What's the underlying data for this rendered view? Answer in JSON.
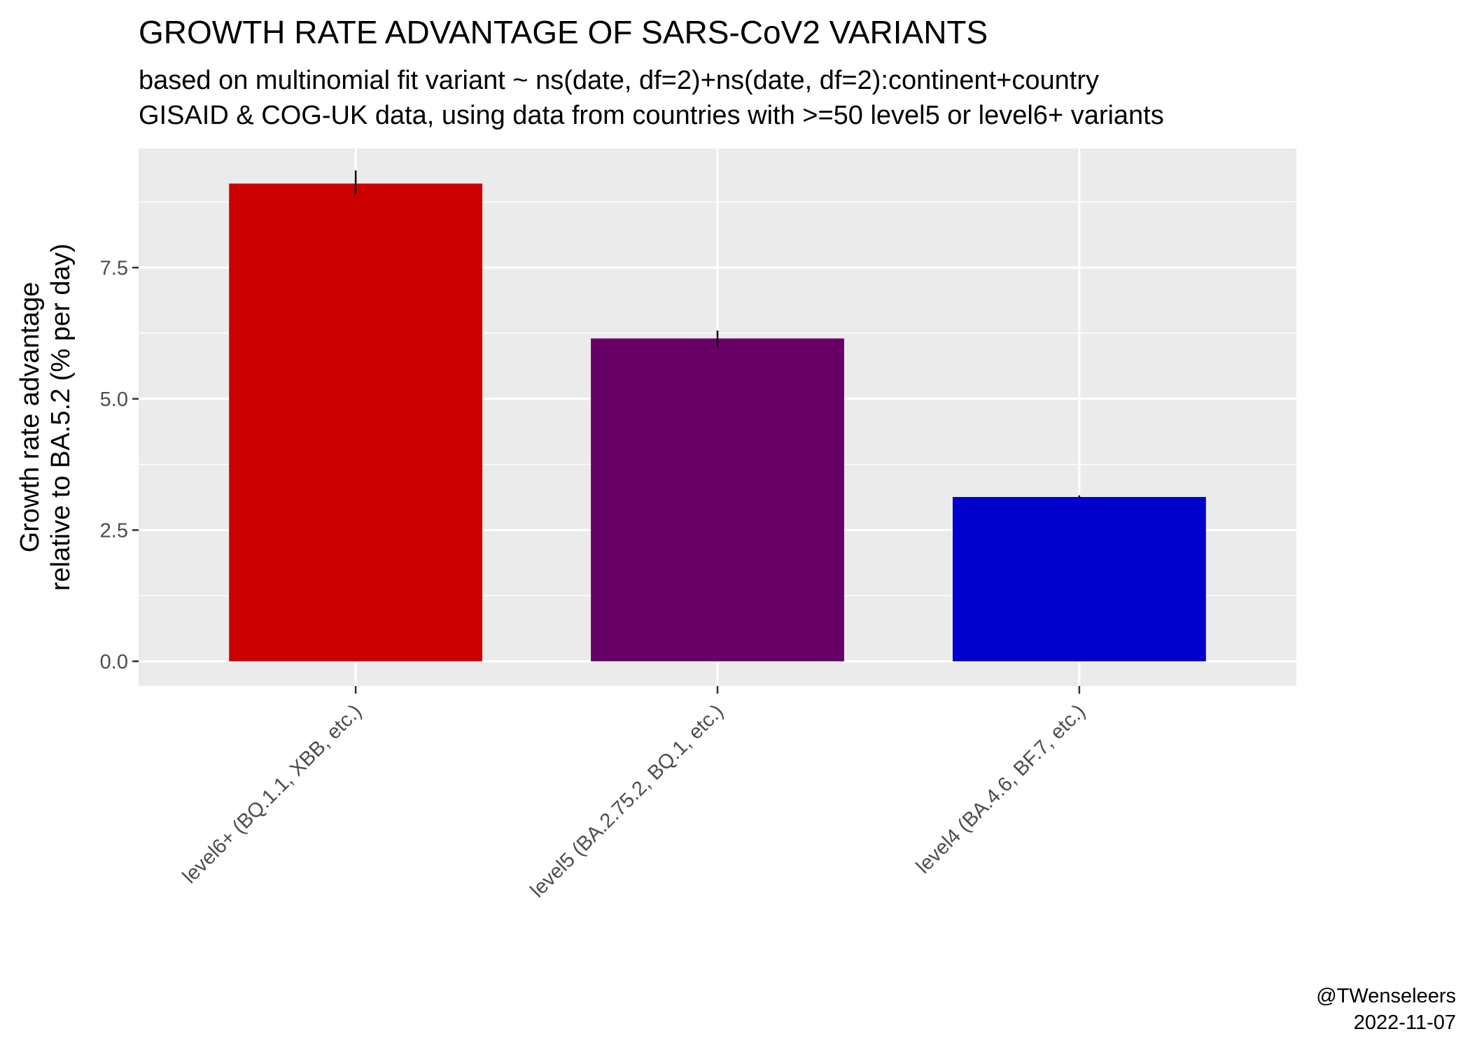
{
  "chart_data": {
    "type": "bar",
    "title": "GROWTH RATE ADVANTAGE OF SARS-CoV2 VARIANTS",
    "subtitle_lines": [
      "based on multinomial fit variant ~ ns(date, df=2)+ns(date, df=2):continent+country",
      "GISAID & COG-UK data, using data from countries with >=50 level5 or level6+ variants"
    ],
    "ylabel_lines": [
      "Growth rate advantage",
      "relative to BA.5.2 (% per day)"
    ],
    "xlabel": "",
    "categories": [
      "level6+ (BQ.1.1, XBB, etc.)",
      "level5 (BA.2.75.2, BQ.1, etc.)",
      "level4 (BA.4.6, BF.7, etc.)"
    ],
    "values": [
      9.1,
      6.15,
      3.13
    ],
    "error_low": [
      8.9,
      6.0,
      3.1
    ],
    "error_high": [
      9.35,
      6.3,
      3.16
    ],
    "colors": [
      "#CC0000",
      "#660066",
      "#0000CC"
    ],
    "ylim": [
      -0.47,
      9.77
    ],
    "yticks": [
      0.0,
      2.5,
      5.0,
      7.5
    ],
    "ytick_labels": [
      "0.0",
      "2.5",
      "5.0",
      "7.5"
    ],
    "grid": true,
    "legend": "none",
    "panel_background": "#EBEBEB",
    "caption_lines": [
      "@TWenseleers",
      "2022-11-07"
    ]
  }
}
